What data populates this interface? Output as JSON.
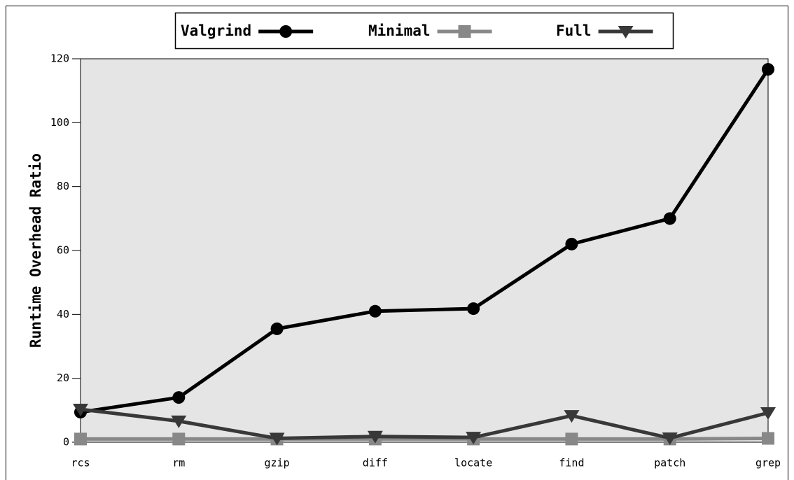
{
  "chart_data": {
    "type": "line",
    "y_label": "Runtime Overhead Ratio",
    "categories": [
      "rcs",
      "rm",
      "gzip",
      "diff",
      "locate",
      "find",
      "patch",
      "grep"
    ],
    "series": [
      {
        "name": "Valgrind",
        "color": "#000000",
        "marker": "circle",
        "values": [
          9.4,
          14,
          35.5,
          41,
          41.8,
          62,
          70,
          116.7
        ]
      },
      {
        "name": "Minimal",
        "color": "#888888",
        "marker": "square",
        "values": [
          1,
          1,
          1,
          1,
          1,
          1,
          1,
          1.2
        ]
      },
      {
        "name": "Full",
        "color": "#383838",
        "marker": "triangle-down",
        "values": [
          10.3,
          6.6,
          1.2,
          1.8,
          1.5,
          8.3,
          1.3,
          9.2
        ]
      }
    ],
    "ylim": [
      0,
      120
    ],
    "yticks": [
      0,
      20,
      40,
      60,
      80,
      100,
      120
    ],
    "legend": "top"
  }
}
